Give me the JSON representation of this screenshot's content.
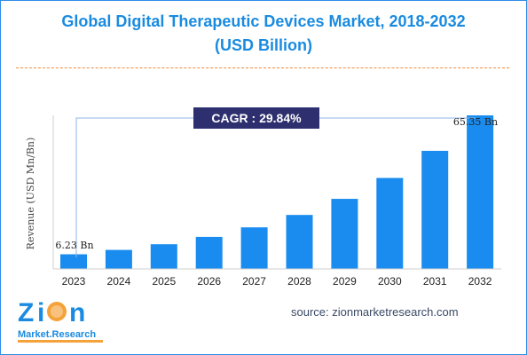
{
  "chart_data": {
    "type": "bar",
    "title": "Global Digital Therapeutic Devices Market, 2018-2032",
    "subtitle": "(USD Billion)",
    "ylabel": "Revenue (USD Mn/Bn)",
    "xlabel": "",
    "categories": [
      "2023",
      "2024",
      "2025",
      "2026",
      "2027",
      "2028",
      "2029",
      "2030",
      "2031",
      "2032"
    ],
    "values": [
      6.23,
      8.09,
      10.5,
      13.63,
      17.69,
      22.97,
      29.82,
      38.71,
      50.26,
      65.35
    ],
    "ylim": [
      0,
      70
    ],
    "grid": false,
    "bar_color": "#1a8cf0",
    "annotations": {
      "first_value_label": "6.23 Bn",
      "last_value_label": "65.35 Bn",
      "cagr_label": "CAGR :  29.84%"
    }
  },
  "source": "source: zionmarketresearch.com",
  "logo": {
    "name_top": "Zion",
    "name_bottom": "Market.Research",
    "letter_z": "Z",
    "letter_i": "i",
    "letter_o": "o",
    "letter_n": "n"
  },
  "colors": {
    "title": "#1a8be0",
    "cagr_box": "#2e2f6e",
    "divider": "#f08a3c",
    "border": "#2e8de8"
  }
}
